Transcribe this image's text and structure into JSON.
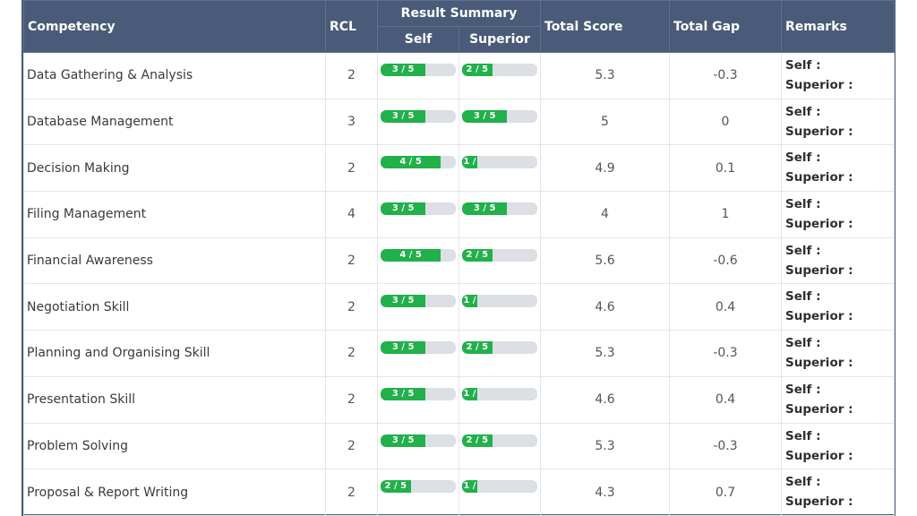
{
  "headers": {
    "competency": "Competency",
    "rcl": "RCL",
    "result_summary": "Result Summary",
    "self": "Self",
    "superior": "Superior",
    "total_score": "Total Score",
    "total_gap": "Total Gap",
    "remarks": "Remarks"
  },
  "remark_labels": {
    "self": "Self :",
    "superior": "Superior :"
  },
  "colors": {
    "header_bg": "#4a5b79",
    "bar_fill": "#22b04b",
    "bar_track": "#dcdfe4"
  },
  "rows": [
    {
      "competency": "Data Gathering & Analysis",
      "rcl": "2",
      "self_label": "3 / 5",
      "self_value": 3,
      "superior_label": "2 / 5",
      "superior_value": 2,
      "total_score": "5.3",
      "total_gap": "-0.3"
    },
    {
      "competency": "Database Management",
      "rcl": "3",
      "self_label": "3 / 5",
      "self_value": 3,
      "superior_label": "3 / 5",
      "superior_value": 3,
      "total_score": "5",
      "total_gap": "0"
    },
    {
      "competency": "Decision Making",
      "rcl": "2",
      "self_label": "4 / 5",
      "self_value": 4,
      "superior_label": "1 /",
      "superior_value": 1,
      "total_score": "4.9",
      "total_gap": "0.1"
    },
    {
      "competency": "Filing Management",
      "rcl": "4",
      "self_label": "3 / 5",
      "self_value": 3,
      "superior_label": "3 / 5",
      "superior_value": 3,
      "total_score": "4",
      "total_gap": "1"
    },
    {
      "competency": "Financial Awareness",
      "rcl": "2",
      "self_label": "4 / 5",
      "self_value": 4,
      "superior_label": "2 / 5",
      "superior_value": 2,
      "total_score": "5.6",
      "total_gap": "-0.6"
    },
    {
      "competency": "Negotiation Skill",
      "rcl": "2",
      "self_label": "3 / 5",
      "self_value": 3,
      "superior_label": "1 /",
      "superior_value": 1,
      "total_score": "4.6",
      "total_gap": "0.4"
    },
    {
      "competency": "Planning and Organising Skill",
      "rcl": "2",
      "self_label": "3 / 5",
      "self_value": 3,
      "superior_label": "2 / 5",
      "superior_value": 2,
      "total_score": "5.3",
      "total_gap": "-0.3"
    },
    {
      "competency": "Presentation Skill",
      "rcl": "2",
      "self_label": "3 / 5",
      "self_value": 3,
      "superior_label": "1 /",
      "superior_value": 1,
      "total_score": "4.6",
      "total_gap": "0.4"
    },
    {
      "competency": "Problem Solving",
      "rcl": "2",
      "self_label": "3 / 5",
      "self_value": 3,
      "superior_label": "2 / 5",
      "superior_value": 2,
      "total_score": "5.3",
      "total_gap": "-0.3"
    },
    {
      "competency": "Proposal & Report Writing",
      "rcl": "2",
      "self_label": "2 / 5",
      "self_value": 2,
      "superior_label": "1 /",
      "superior_value": 1,
      "total_score": "4.3",
      "total_gap": "0.7"
    }
  ]
}
